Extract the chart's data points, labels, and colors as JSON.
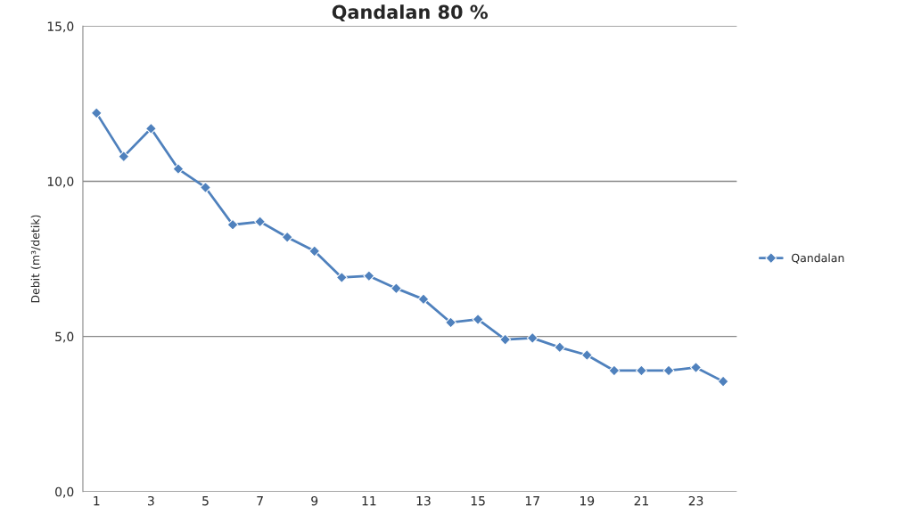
{
  "chart_data": {
    "type": "line",
    "title": "Qandalan 80 %",
    "ylabel": "Debit (m³/detik)",
    "categories": [
      "1",
      null,
      "3",
      null,
      "5",
      null,
      "7",
      null,
      "9",
      null,
      "11",
      null,
      "13",
      null,
      "15",
      null,
      "17",
      null,
      "19",
      null,
      "21",
      null,
      "23",
      null
    ],
    "series": [
      {
        "name": "Qandalan",
        "color": "#4f81bd",
        "values": [
          12.2,
          10.8,
          11.7,
          10.4,
          9.8,
          8.6,
          8.7,
          8.2,
          7.75,
          6.9,
          6.95,
          6.55,
          6.2,
          5.45,
          5.55,
          4.9,
          4.95,
          4.65,
          4.4,
          3.9,
          3.9,
          3.9,
          4.0,
          3.55
        ]
      }
    ],
    "ylim": [
      0,
      15
    ],
    "yticks": [
      {
        "value": 0,
        "label": "0,0"
      },
      {
        "value": 5,
        "label": "5,0"
      },
      {
        "value": 10,
        "label": "10,0"
      },
      {
        "value": 15,
        "label": "15,0"
      }
    ],
    "grid": "y",
    "legend": "right",
    "marker": "diamond",
    "line_style": "solid"
  }
}
